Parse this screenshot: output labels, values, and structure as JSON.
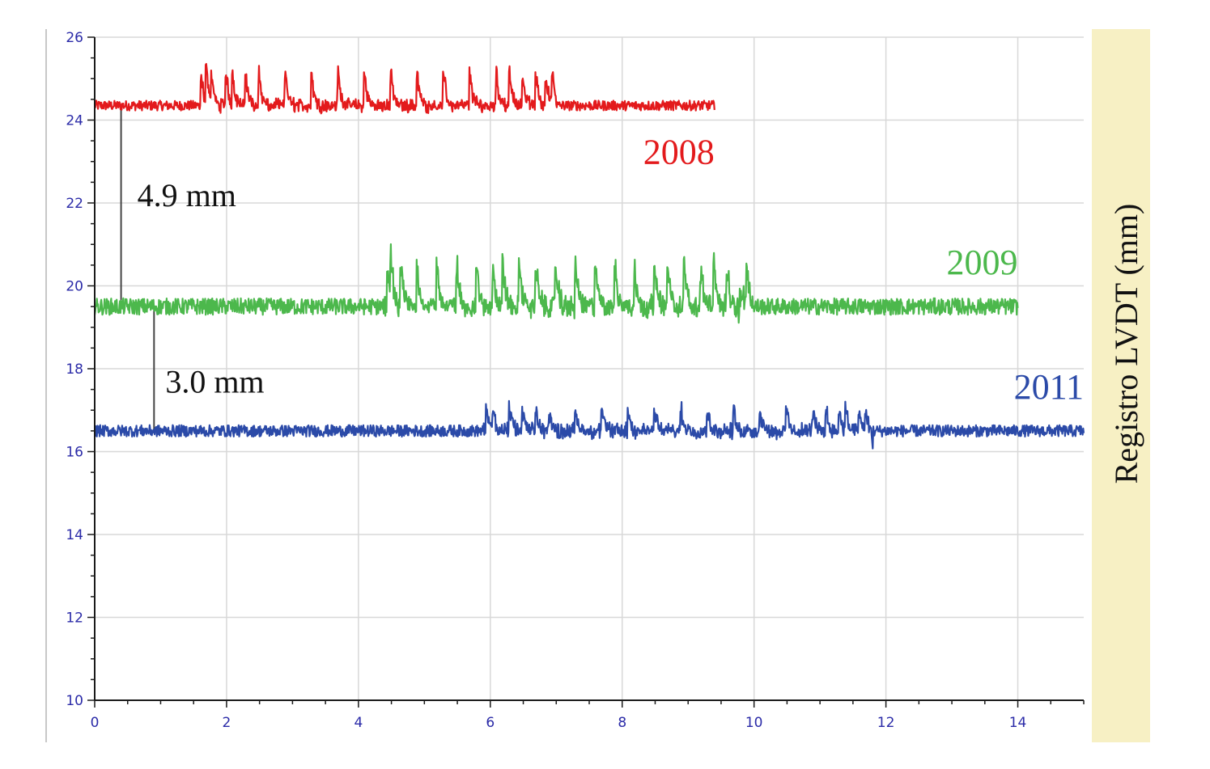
{
  "chart_data": {
    "type": "line",
    "title": "",
    "xlabel": "",
    "ylabel": "Registro LVDT (mm)",
    "xlim": [
      0,
      15
    ],
    "ylim": [
      10,
      26
    ],
    "x_ticks": [
      0,
      2,
      4,
      6,
      8,
      10,
      12,
      14
    ],
    "y_ticks": [
      10,
      12,
      14,
      16,
      18,
      20,
      22,
      24,
      26
    ],
    "grid": true,
    "legend": "none",
    "colors": {
      "axis": "#1a1a1a",
      "tick_label": "#2b2ba8",
      "grid": "#d8d8d8",
      "side_panel": "#f7f0c4",
      "annotation_line": "#444444"
    },
    "series": [
      {
        "name": "2008",
        "color": "#e31a1c",
        "x_range": [
          0,
          9.4
        ],
        "baseline": 24.35,
        "event_range": [
          1.6,
          7.0
        ],
        "noise": 0.12,
        "spike_x": [
          1.62,
          1.7,
          1.78,
          2.0,
          2.1,
          2.3,
          2.5,
          2.9,
          3.3,
          3.7,
          4.1,
          4.5,
          4.9,
          5.3,
          5.7,
          6.1,
          6.3,
          6.5,
          6.7,
          6.85,
          6.95
        ],
        "spike_height": 0.7,
        "label_position": "below-right of trace end"
      },
      {
        "name": "2009",
        "color": "#4cb84c",
        "x_range": [
          0,
          14
        ],
        "baseline": 19.5,
        "event_range": [
          4.4,
          10.0
        ],
        "noise": 0.2,
        "spike_x": [
          4.45,
          4.5,
          4.65,
          4.9,
          5.2,
          5.5,
          5.8,
          6.05,
          6.2,
          6.45,
          6.7,
          7.0,
          7.3,
          7.6,
          7.9,
          8.2,
          8.5,
          8.7,
          8.95,
          9.2,
          9.4,
          9.6,
          9.8,
          9.9
        ],
        "spike_height": 0.9,
        "dip_x": [
          9.8
        ],
        "label_position": "above trace end"
      },
      {
        "name": "2011",
        "color": "#2b4aa8",
        "x_range": [
          0,
          15
        ],
        "baseline": 16.5,
        "event_range": [
          5.9,
          11.8
        ],
        "noise": 0.14,
        "spike_x": [
          5.95,
          6.05,
          6.3,
          6.5,
          6.7,
          6.9,
          7.3,
          7.7,
          8.1,
          8.5,
          8.9,
          9.3,
          9.7,
          10.1,
          10.5,
          10.9,
          11.1,
          11.3,
          11.4,
          11.6,
          11.7
        ],
        "spike_height": 0.45,
        "dip_x": [
          11.8
        ],
        "label_position": "above trace end"
      }
    ],
    "annotations": [
      {
        "text": "4.9 mm",
        "x": 0.4,
        "y_from": 19.5,
        "y_to": 24.35
      },
      {
        "text": "3.0 mm",
        "x": 0.9,
        "y_from": 16.5,
        "y_to": 19.5
      }
    ]
  }
}
